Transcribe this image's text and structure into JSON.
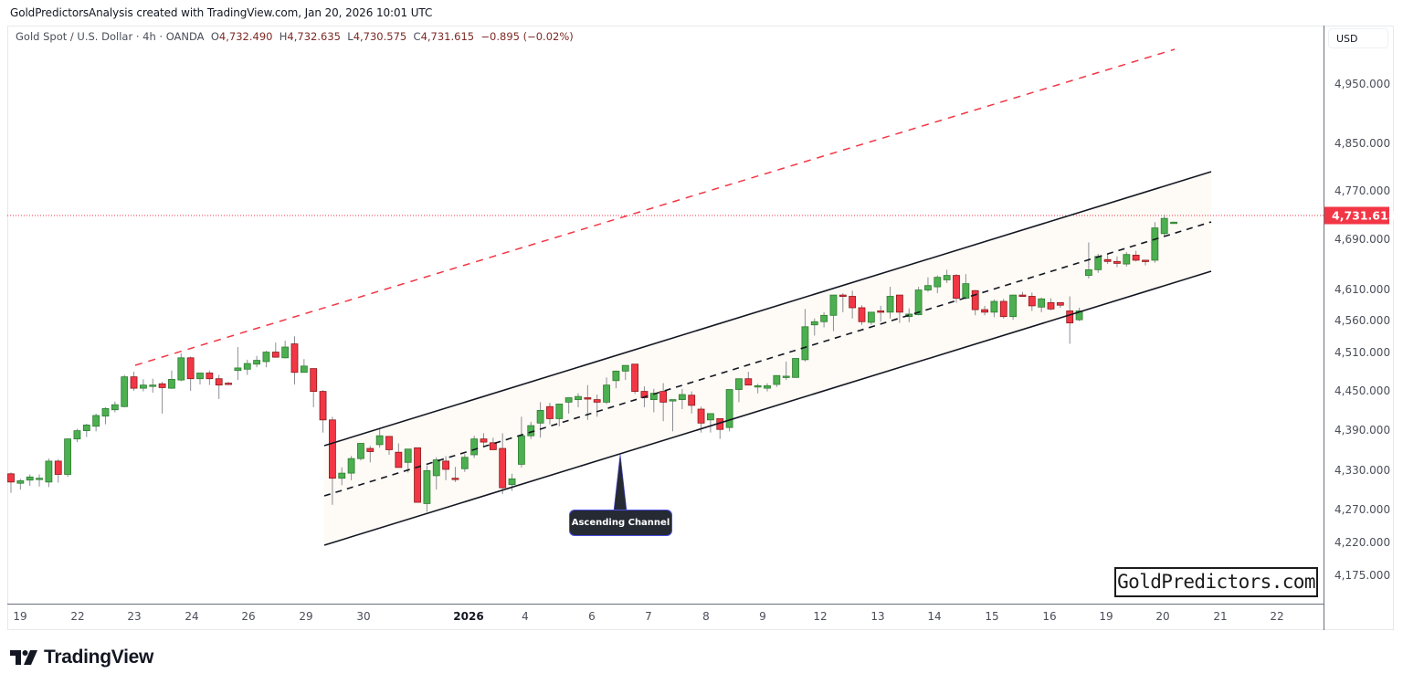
{
  "header": {
    "credit": "GoldPredictorsAnalysis created with TradingView.com, Jan 20, 2026 10:01 UTC"
  },
  "legend": {
    "symbol": "Gold Spot / U.S. Dollar · 4h · OANDA",
    "open_label": "O",
    "open": "4,732.490",
    "high_label": "H",
    "high": "4,732.635",
    "low_label": "L",
    "low": "4,730.575",
    "close_label": "C",
    "close": "4,731.615",
    "change": "−0.895 (−0.02%)"
  },
  "price_axis": {
    "currency_button": "USD",
    "last_price": "4,731.615",
    "last_price_color": "#f23645",
    "ticks": [
      "4,950.000",
      "4,850.000",
      "4,770.000",
      "4,690.000",
      "4,610.000",
      "4,560.000",
      "4,510.000",
      "4,450.000",
      "4,390.000",
      "4,330.000",
      "4,270.000",
      "4,220.000",
      "4,175.000"
    ]
  },
  "time_axis": {
    "labels": [
      "19",
      "22",
      "23",
      "24",
      "26",
      "29",
      "30",
      "2026",
      "4",
      "6",
      "7",
      "8",
      "9",
      "12",
      "13",
      "14",
      "15",
      "16",
      "19",
      "20",
      "21",
      "22"
    ]
  },
  "annotation": {
    "callout": "Ascending Channel"
  },
  "watermark": "GoldPredictors.com",
  "footer": {
    "brand": "TradingView"
  },
  "colors": {
    "up": "#4caf50",
    "down": "#f23645",
    "channel_fill": "#fefaf5",
    "resistance": "#f23645"
  },
  "chart_data": {
    "type": "candlestick",
    "title": "Gold Spot / U.S. Dollar · 4h · OANDA",
    "xlabel": "",
    "ylabel": "USD",
    "ylim": [
      4140,
      5010
    ],
    "x_labels": [
      "19",
      "22",
      "23",
      "24",
      "26",
      "29",
      "30",
      "2026",
      "4",
      "6",
      "7",
      "8",
      "9",
      "12",
      "13",
      "14",
      "15",
      "16",
      "19",
      "20",
      "21",
      "22"
    ],
    "candle_format": [
      "open",
      "high",
      "low",
      "close"
    ],
    "candles": [
      [
        4335,
        4337,
        4305,
        4322
      ],
      [
        4320,
        4327,
        4310,
        4324
      ],
      [
        4325,
        4334,
        4316,
        4330
      ],
      [
        4326,
        4334,
        4315,
        4328
      ],
      [
        4322,
        4359,
        4314,
        4355
      ],
      [
        4355,
        4358,
        4321,
        4334
      ],
      [
        4334,
        4391,
        4330,
        4390
      ],
      [
        4390,
        4406,
        4385,
        4403
      ],
      [
        4403,
        4414,
        4393,
        4412
      ],
      [
        4410,
        4430,
        4402,
        4427
      ],
      [
        4426,
        4440,
        4413,
        4438
      ],
      [
        4436,
        4449,
        4432,
        4444
      ],
      [
        4441,
        4491,
        4440,
        4488
      ],
      [
        4488,
        4496,
        4466,
        4470
      ],
      [
        4470,
        4484,
        4465,
        4475
      ],
      [
        4475,
        4485,
        4463,
        4475
      ],
      [
        4477,
        4480,
        4430,
        4471
      ],
      [
        4470,
        4498,
        4469,
        4484
      ],
      [
        4483,
        4525,
        4481,
        4518
      ],
      [
        4518,
        4520,
        4466,
        4485
      ],
      [
        4485,
        4494,
        4476,
        4494
      ],
      [
        4494,
        4498,
        4475,
        4485
      ],
      [
        4485,
        4491,
        4453,
        4475
      ],
      [
        4478,
        4480,
        4475,
        4476
      ],
      [
        4498,
        4535,
        4483,
        4502
      ],
      [
        4500,
        4515,
        4491,
        4509
      ],
      [
        4508,
        4521,
        4503,
        4514
      ],
      [
        4512,
        4529,
        4503,
        4527
      ],
      [
        4527,
        4542,
        4518,
        4519
      ],
      [
        4518,
        4545,
        4517,
        4535
      ],
      [
        4540,
        4552,
        4476,
        4495
      ],
      [
        4495,
        4516,
        4500,
        4505
      ],
      [
        4501,
        4496,
        4440,
        4465
      ],
      [
        4465,
        4467,
        4400,
        4420
      ],
      [
        4420,
        4425,
        4286,
        4328
      ],
      [
        4328,
        4345,
        4317,
        4336
      ],
      [
        4336,
        4363,
        4325,
        4359
      ],
      [
        4359,
        4381,
        4356,
        4383
      ],
      [
        4375,
        4379,
        4353,
        4370
      ],
      [
        4381,
        4407,
        4376,
        4395
      ],
      [
        4394,
        4386,
        4365,
        4373
      ],
      [
        4369,
        4383,
        4345,
        4345
      ],
      [
        4353,
        4358,
        4337,
        4374
      ],
      [
        4376,
        4368,
        4310,
        4290
      ],
      [
        4288,
        4348,
        4275,
        4340
      ],
      [
        4332,
        4361,
        4310,
        4357
      ],
      [
        4355,
        4363,
        4325,
        4342
      ],
      [
        4328,
        4346,
        4322,
        4327
      ],
      [
        4343,
        4366,
        4338,
        4361
      ],
      [
        4365,
        4395,
        4360,
        4390
      ],
      [
        4390,
        4399,
        4378,
        4385
      ],
      [
        4384,
        4392,
        4375,
        4373
      ],
      [
        4375,
        4399,
        4303,
        4313
      ],
      [
        4318,
        4335,
        4308,
        4327
      ],
      [
        4350,
        4425,
        4345,
        4395
      ],
      [
        4395,
        4417,
        4390,
        4411
      ],
      [
        4415,
        4448,
        4392,
        4435
      ],
      [
        4441,
        4447,
        4413,
        4422
      ],
      [
        4422,
        4445,
        4410,
        4445
      ],
      [
        4448,
        4453,
        4430,
        4455
      ],
      [
        4452,
        4462,
        4440,
        4457
      ],
      [
        4455,
        4475,
        4420,
        4453
      ],
      [
        4452,
        4460,
        4425,
        4448
      ],
      [
        4448,
        4487,
        4445,
        4475
      ],
      [
        4482,
        4498,
        4470,
        4497
      ],
      [
        4497,
        4503,
        4483,
        4506
      ],
      [
        4508,
        4508,
        4461,
        4465
      ],
      [
        4465,
        4473,
        4440,
        4455
      ],
      [
        4452,
        4469,
        4432,
        4462
      ],
      [
        4465,
        4478,
        4418,
        4448
      ],
      [
        4451,
        4452,
        4402,
        4452
      ],
      [
        4452,
        4469,
        4437,
        4460
      ],
      [
        4459,
        4465,
        4430,
        4443
      ],
      [
        4437,
        4441,
        4400,
        4415
      ],
      [
        4420,
        4425,
        4400,
        4430
      ],
      [
        4422,
        4412,
        4390,
        4405
      ],
      [
        4408,
        4463,
        4402,
        4468
      ],
      [
        4468,
        4478,
        4448,
        4485
      ],
      [
        4485,
        4496,
        4475,
        4475
      ],
      [
        4474,
        4477,
        4462,
        4474
      ],
      [
        4470,
        4478,
        4465,
        4474
      ],
      [
        4476,
        4490,
        4472,
        4490
      ],
      [
        4488,
        4512,
        4483,
        4489
      ],
      [
        4487,
        4512,
        4488,
        4517
      ],
      [
        4515,
        4595,
        4512,
        4567
      ],
      [
        4570,
        4580,
        4553,
        4575
      ],
      [
        4575,
        4590,
        4566,
        4585
      ],
      [
        4585,
        4615,
        4560,
        4617
      ],
      [
        4617,
        4620,
        4590,
        4615
      ],
      [
        4615,
        4624,
        4580,
        4597
      ],
      [
        4597,
        4601,
        4570,
        4575
      ],
      [
        4574,
        4590,
        4570,
        4590
      ],
      [
        4592,
        4600,
        4575,
        4590
      ],
      [
        4590,
        4630,
        4580,
        4615
      ],
      [
        4617,
        4610,
        4573,
        4590
      ],
      [
        4583,
        4596,
        4574,
        4587
      ],
      [
        4586,
        4630,
        4585,
        4625
      ],
      [
        4625,
        4645,
        4622,
        4632
      ],
      [
        4630,
        4648,
        4620,
        4645
      ],
      [
        4641,
        4657,
        4636,
        4648
      ],
      [
        4648,
        4650,
        4605,
        4612
      ],
      [
        4612,
        4650,
        4610,
        4635
      ],
      [
        4624,
        4625,
        4585,
        4594
      ],
      [
        4594,
        4600,
        4585,
        4590
      ],
      [
        4590,
        4610,
        4582,
        4607
      ],
      [
        4607,
        4611,
        4580,
        4583
      ],
      [
        4583,
        4617,
        4578,
        4617
      ],
      [
        4617,
        4622,
        4614,
        4615
      ],
      [
        4615,
        4621,
        4592,
        4600
      ],
      [
        4598,
        4613,
        4590,
        4611
      ],
      [
        4605,
        4612,
        4593,
        4595
      ],
      [
        4605,
        4604,
        4597,
        4601
      ],
      [
        4592,
        4615,
        4540,
        4573
      ],
      [
        4578,
        4597,
        4576,
        4592
      ],
      [
        4648,
        4700,
        4643,
        4657
      ],
      [
        4657,
        4682,
        4652,
        4678
      ],
      [
        4673,
        4682,
        4666,
        4670
      ],
      [
        4670,
        4678,
        4661,
        4667
      ],
      [
        4666,
        4685,
        4662,
        4681
      ],
      [
        4680,
        4687,
        4670,
        4672
      ],
      [
        4672,
        4671,
        4664,
        4671
      ],
      [
        4672,
        4732,
        4668,
        4723
      ],
      [
        4714,
        4744,
        4709,
        4738
      ],
      [
        4732,
        4733,
        4731,
        4732
      ]
    ],
    "overlays": [
      {
        "type": "channel_upper",
        "points": [
          [
            355,
            488
          ],
          [
            1326,
            188
          ]
        ],
        "style": "solid",
        "color": "#131722"
      },
      {
        "type": "channel_mid",
        "points": [
          [
            355,
            543
          ],
          [
            1326,
            243
          ]
        ],
        "style": "dashed",
        "color": "#131722"
      },
      {
        "type": "channel_lower",
        "points": [
          [
            355,
            597
          ],
          [
            1326,
            297
          ]
        ],
        "style": "solid",
        "color": "#131722"
      },
      {
        "type": "resistance_trendline",
        "points": [
          [
            148,
            400
          ],
          [
            1286,
            54
          ]
        ],
        "style": "dashed",
        "color": "#f23645"
      },
      {
        "type": "last_price_line",
        "value": 4731.615,
        "style": "dotted",
        "color": "#f23645"
      }
    ],
    "annotations": [
      {
        "text": "Ascending Channel",
        "pointer": [
          679,
          497
        ]
      }
    ]
  }
}
